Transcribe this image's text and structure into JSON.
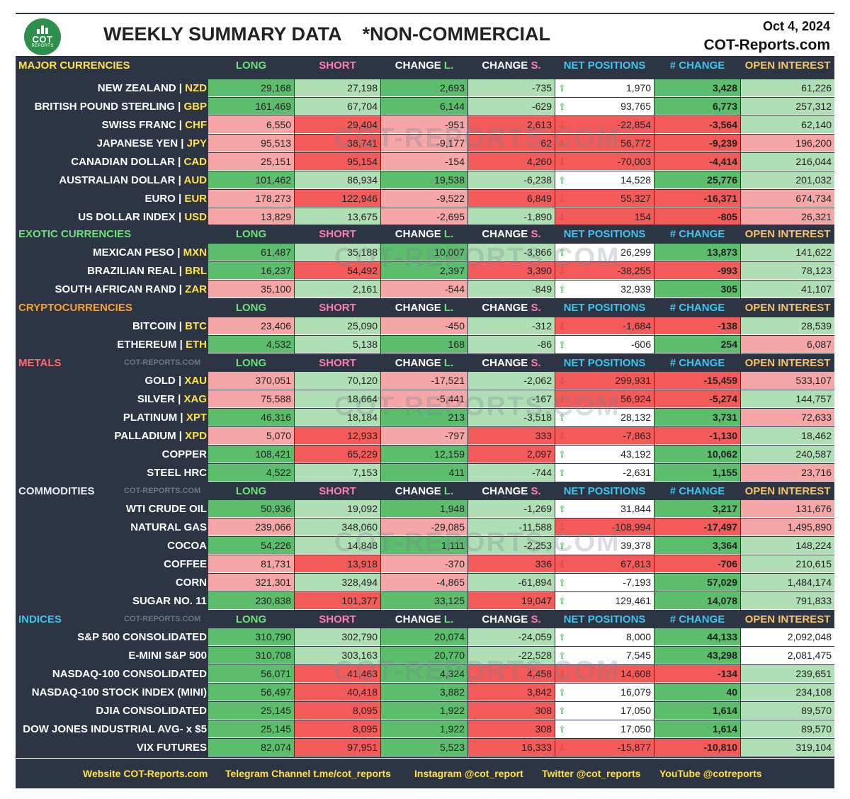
{
  "header": {
    "logo_text": "COT",
    "logo_sub": "REPORTS",
    "title": "WEEKLY SUMMARY DATA    *NON-COMMERCIAL",
    "date": "Oct 4, 2024",
    "site": "COT-Reports.com"
  },
  "columns": {
    "long": "LONG",
    "short": "SHORT",
    "change_l_a": "CHANGE ",
    "change_l_b": "L.",
    "change_s_a": "CHANGE ",
    "change_s_b": "S.",
    "net": "NET POSITIONS",
    "chg": "# CHANGE",
    "oi": "OPEN INTEREST"
  },
  "colors": {
    "band": "#2d3544",
    "green": "#5cbd6c",
    "light_green": "#b0dfb5",
    "red": "#f35a5a",
    "light_red": "#f6a6a6",
    "code_yellow": "#ffe14d"
  },
  "watermark": "COT-REPORTS.COM",
  "sections": [
    {
      "title": "MAJOR CURRENCIES",
      "title_color": "#ffe14d",
      "small_watermark": "",
      "rows": [
        {
          "name": "NEW ZEALAND",
          "code": "NZD",
          "long": "29,168",
          "short": "27,198",
          "chg_l": "2,693",
          "chg_s": "-735",
          "net": "1,970",
          "net_chg": "3,428",
          "oi": "61,226",
          "dir": "up",
          "c": [
            "g",
            "lg",
            "g",
            "lg",
            "wh",
            "g",
            "lg"
          ]
        },
        {
          "name": "BRITISH POUND STERLING",
          "code": "GBP",
          "long": "161,469",
          "short": "67,704",
          "chg_l": "6,144",
          "chg_s": "-629",
          "net": "93,765",
          "net_chg": "6,773",
          "oi": "257,312",
          "dir": "up",
          "c": [
            "g",
            "lg",
            "g",
            "lg",
            "wh",
            "g",
            "lg"
          ]
        },
        {
          "name": "SWISS FRANC",
          "code": "CHF",
          "long": "6,550",
          "short": "29,404",
          "chg_l": "-951",
          "chg_s": "2,613",
          "net": "-22,854",
          "net_chg": "-3,564",
          "oi": "62,140",
          "dir": "down",
          "c": [
            "lr",
            "r",
            "lr",
            "r",
            "r",
            "r",
            "lg"
          ]
        },
        {
          "name": "JAPANESE YEN",
          "code": "JPY",
          "long": "95,513",
          "short": "38,741",
          "chg_l": "-9,177",
          "chg_s": "62",
          "net": "56,772",
          "net_chg": "-9,239",
          "oi": "196,200",
          "dir": "down",
          "c": [
            "lr",
            "r",
            "lr",
            "r",
            "r",
            "r",
            "lr"
          ]
        },
        {
          "name": "CANADIAN DOLLAR",
          "code": "CAD",
          "long": "25,151",
          "short": "95,154",
          "chg_l": "-154",
          "chg_s": "4,260",
          "net": "-70,003",
          "net_chg": "-4,414",
          "oi": "216,044",
          "dir": "down",
          "c": [
            "lr",
            "r",
            "lr",
            "r",
            "r",
            "r",
            "lg"
          ]
        },
        {
          "name": "AUSTRALIAN DOLLAR",
          "code": "AUD",
          "long": "101,462",
          "short": "86,934",
          "chg_l": "19,538",
          "chg_s": "-6,238",
          "net": "14,528",
          "net_chg": "25,776",
          "oi": "201,032",
          "dir": "up",
          "c": [
            "g",
            "lg",
            "g",
            "lg",
            "wh",
            "g",
            "lg"
          ]
        },
        {
          "name": "EURO",
          "code": "EUR",
          "long": "178,273",
          "short": "122,946",
          "chg_l": "-9,522",
          "chg_s": "6,849",
          "net": "55,327",
          "net_chg": "-16,371",
          "oi": "674,734",
          "dir": "down",
          "c": [
            "lr",
            "r",
            "lr",
            "r",
            "r",
            "r",
            "lr"
          ]
        },
        {
          "name": "US DOLLAR INDEX",
          "code": "USD",
          "long": "13,829",
          "short": "13,675",
          "chg_l": "-2,695",
          "chg_s": "-1,890",
          "net": "154",
          "net_chg": "-805",
          "oi": "26,321",
          "dir": "down",
          "c": [
            "lr",
            "lg",
            "lr",
            "lg",
            "r",
            "r",
            "lr"
          ]
        }
      ]
    },
    {
      "title": "EXOTIC CURRENCIES",
      "title_color": "#6ee07a",
      "small_watermark": "",
      "rows": [
        {
          "name": "MEXICAN PESO",
          "code": "MXN",
          "long": "61,487",
          "short": "35,188",
          "chg_l": "10,007",
          "chg_s": "-3,866",
          "net": "26,299",
          "net_chg": "13,873",
          "oi": "141,622",
          "dir": "up",
          "c": [
            "g",
            "lg",
            "g",
            "lg",
            "wh",
            "g",
            "lg"
          ]
        },
        {
          "name": "BRAZILIAN REAL",
          "code": "BRL",
          "long": "16,237",
          "short": "54,492",
          "chg_l": "2,397",
          "chg_s": "3,390",
          "net": "-38,255",
          "net_chg": "-993",
          "oi": "78,123",
          "dir": "down",
          "c": [
            "g",
            "r",
            "g",
            "r",
            "r",
            "r",
            "lg"
          ]
        },
        {
          "name": "SOUTH AFRICAN RAND",
          "code": "ZAR",
          "long": "35,100",
          "short": "2,161",
          "chg_l": "-544",
          "chg_s": "-849",
          "net": "32,939",
          "net_chg": "305",
          "oi": "41,107",
          "dir": "up",
          "c": [
            "lr",
            "lg",
            "lr",
            "lg",
            "wh",
            "g",
            "lg"
          ]
        }
      ]
    },
    {
      "title": "CRYPTOCURRENCIES",
      "title_color": "#f5a23c",
      "small_watermark": "",
      "rows": [
        {
          "name": "BITCOIN",
          "code": "BTC",
          "long": "23,406",
          "short": "25,090",
          "chg_l": "-450",
          "chg_s": "-312",
          "net": "-1,684",
          "net_chg": "-138",
          "oi": "28,539",
          "dir": "down",
          "c": [
            "lr",
            "lg",
            "lr",
            "lg",
            "r",
            "r",
            "lg"
          ]
        },
        {
          "name": "ETHEREUM",
          "code": "ETH",
          "long": "4,532",
          "short": "5,138",
          "chg_l": "168",
          "chg_s": "-86",
          "net": "-606",
          "net_chg": "254",
          "oi": "6,087",
          "dir": "up",
          "c": [
            "g",
            "lg",
            "g",
            "lg",
            "wh",
            "g",
            "lr"
          ]
        }
      ]
    },
    {
      "title": "METALS",
      "title_color": "#ff6b6b",
      "small_watermark": "COT-REPORTS.COM",
      "rows": [
        {
          "name": "GOLD",
          "code": "XAU",
          "long": "370,051",
          "short": "70,120",
          "chg_l": "-17,521",
          "chg_s": "-2,062",
          "net": "299,931",
          "net_chg": "-15,459",
          "oi": "533,107",
          "dir": "down",
          "c": [
            "lr",
            "lg",
            "lr",
            "lg",
            "r",
            "r",
            "lr"
          ]
        },
        {
          "name": "SILVER",
          "code": "XAG",
          "long": "75,588",
          "short": "18,664",
          "chg_l": "-5,441",
          "chg_s": "-167",
          "net": "56,924",
          "net_chg": "-5,274",
          "oi": "144,757",
          "dir": "down",
          "c": [
            "lr",
            "lg",
            "lr",
            "lg",
            "r",
            "r",
            "lg"
          ]
        },
        {
          "name": "PLATINUM",
          "code": "XPT",
          "long": "46,316",
          "short": "18,184",
          "chg_l": "213",
          "chg_s": "-3,518",
          "net": "28,132",
          "net_chg": "3,731",
          "oi": "72,633",
          "dir": "up",
          "c": [
            "g",
            "lg",
            "g",
            "lg",
            "wh",
            "g",
            "lr"
          ]
        },
        {
          "name": "PALLADIUM",
          "code": "XPD",
          "long": "5,070",
          "short": "12,933",
          "chg_l": "-797",
          "chg_s": "333",
          "net": "-7,863",
          "net_chg": "-1,130",
          "oi": "18,462",
          "dir": "down",
          "c": [
            "lr",
            "r",
            "lr",
            "r",
            "r",
            "r",
            "lg"
          ]
        },
        {
          "name": "COPPER",
          "code": "",
          "long": "108,421",
          "short": "65,229",
          "chg_l": "12,159",
          "chg_s": "2,097",
          "net": "43,192",
          "net_chg": "10,062",
          "oi": "240,587",
          "dir": "up",
          "c": [
            "g",
            "r",
            "g",
            "r",
            "wh",
            "g",
            "lg"
          ]
        },
        {
          "name": "STEEL HRC",
          "code": "",
          "long": "4,522",
          "short": "7,153",
          "chg_l": "411",
          "chg_s": "-744",
          "net": "-2,631",
          "net_chg": "1,155",
          "oi": "23,716",
          "dir": "up",
          "c": [
            "g",
            "lg",
            "g",
            "lg",
            "wh",
            "g",
            "lr"
          ]
        }
      ]
    },
    {
      "title": "COMMODITIES",
      "title_color": "#e8ecf2",
      "small_watermark": "COT-REPORTS.COM",
      "rows": [
        {
          "name": "WTI CRUDE OIL",
          "code": "",
          "long": "50,936",
          "short": "19,092",
          "chg_l": "1,948",
          "chg_s": "-1,269",
          "net": "31,844",
          "net_chg": "3,217",
          "oi": "131,676",
          "dir": "up",
          "c": [
            "g",
            "lg",
            "g",
            "lg",
            "wh",
            "g",
            "lr"
          ]
        },
        {
          "name": "NATURAL GAS",
          "code": "",
          "long": "239,066",
          "short": "348,060",
          "chg_l": "-29,085",
          "chg_s": "-11,588",
          "net": "-108,994",
          "net_chg": "-17,497",
          "oi": "1,495,890",
          "dir": "down",
          "c": [
            "lr",
            "lg",
            "lr",
            "lg",
            "r",
            "r",
            "lr"
          ]
        },
        {
          "name": "COCOA",
          "code": "",
          "long": "54,226",
          "short": "14,848",
          "chg_l": "1,111",
          "chg_s": "-2,253",
          "net": "39,378",
          "net_chg": "3,364",
          "oi": "148,224",
          "dir": "up",
          "c": [
            "g",
            "lg",
            "g",
            "lg",
            "wh",
            "g",
            "lg"
          ]
        },
        {
          "name": "COFFEE",
          "code": "",
          "long": "81,731",
          "short": "13,918",
          "chg_l": "-370",
          "chg_s": "336",
          "net": "67,813",
          "net_chg": "-706",
          "oi": "210,615",
          "dir": "down",
          "c": [
            "lr",
            "r",
            "lr",
            "r",
            "r",
            "r",
            "lg"
          ]
        },
        {
          "name": "CORN",
          "code": "",
          "long": "321,301",
          "short": "328,494",
          "chg_l": "-4,865",
          "chg_s": "-61,894",
          "net": "-7,193",
          "net_chg": "57,029",
          "oi": "1,484,174",
          "dir": "up",
          "c": [
            "lr",
            "lg",
            "lr",
            "lg",
            "wh",
            "g",
            "lg"
          ]
        },
        {
          "name": "SUGAR NO. 11",
          "code": "",
          "long": "230,838",
          "short": "101,377",
          "chg_l": "33,125",
          "chg_s": "19,047",
          "net": "129,461",
          "net_chg": "14,078",
          "oi": "791,833",
          "dir": "up",
          "c": [
            "g",
            "r",
            "g",
            "r",
            "wh",
            "g",
            "lg"
          ]
        }
      ]
    },
    {
      "title": "INDICES",
      "title_color": "#3fc4ee",
      "small_watermark": "COT-REPORTS.COM",
      "rows": [
        {
          "name": "S&P 500 CONSOLIDATED",
          "code": "",
          "long": "310,790",
          "short": "302,790",
          "chg_l": "20,074",
          "chg_s": "-24,059",
          "net": "8,000",
          "net_chg": "44,133",
          "oi": "2,092,048",
          "dir": "up",
          "c": [
            "g",
            "lg",
            "g",
            "lg",
            "wh",
            "g",
            "wh"
          ]
        },
        {
          "name": "E-MINI S&P 500",
          "code": "",
          "long": "310,708",
          "short": "303,163",
          "chg_l": "20,770",
          "chg_s": "-22,528",
          "net": "7,545",
          "net_chg": "43,298",
          "oi": "2,081,475",
          "dir": "up",
          "c": [
            "g",
            "lg",
            "g",
            "lg",
            "wh",
            "g",
            "wh"
          ]
        },
        {
          "name": "NASDAQ-100 CONSOLIDATED",
          "code": "",
          "long": "56,071",
          "short": "41,463",
          "chg_l": "4,324",
          "chg_s": "4,458",
          "net": "14,608",
          "net_chg": "-134",
          "oi": "239,651",
          "dir": "down",
          "c": [
            "g",
            "r",
            "g",
            "r",
            "r",
            "r",
            "lg"
          ]
        },
        {
          "name": "NASDAQ-100 STOCK INDEX (MINI)",
          "code": "",
          "long": "56,497",
          "short": "40,418",
          "chg_l": "3,882",
          "chg_s": "3,842",
          "net": "16,079",
          "net_chg": "40",
          "oi": "234,108",
          "dir": "up",
          "c": [
            "g",
            "r",
            "g",
            "r",
            "wh",
            "g",
            "lg"
          ]
        },
        {
          "name": "DJIA CONSOLIDATED",
          "code": "",
          "long": "25,145",
          "short": "8,095",
          "chg_l": "1,922",
          "chg_s": "308",
          "net": "17,050",
          "net_chg": "1,614",
          "oi": "89,570",
          "dir": "up",
          "c": [
            "g",
            "r",
            "g",
            "r",
            "wh",
            "g",
            "lg"
          ]
        },
        {
          "name": "DOW JONES INDUSTRIAL AVG- x $5",
          "code": "",
          "long": "25,145",
          "short": "8,095",
          "chg_l": "1,922",
          "chg_s": "308",
          "net": "17,050",
          "net_chg": "1,614",
          "oi": "89,570",
          "dir": "up",
          "c": [
            "g",
            "r",
            "g",
            "r",
            "wh",
            "g",
            "lg"
          ]
        },
        {
          "name": "VIX FUTURES",
          "code": "",
          "long": "82,074",
          "short": "97,951",
          "chg_l": "5,523",
          "chg_s": "16,333",
          "net": "-15,877",
          "net_chg": "-10,810",
          "oi": "319,104",
          "dir": "down",
          "c": [
            "g",
            "r",
            "g",
            "r",
            "r",
            "r",
            "lg"
          ]
        }
      ]
    }
  ],
  "footer": {
    "website": "Website COT-Reports.com",
    "telegram": "Telegram Channel t.me/cot_reports",
    "instagram": "Instagram @cot_report",
    "twitter": "Twitter @cot_reports",
    "youtube": "YouTube @cotreports"
  }
}
